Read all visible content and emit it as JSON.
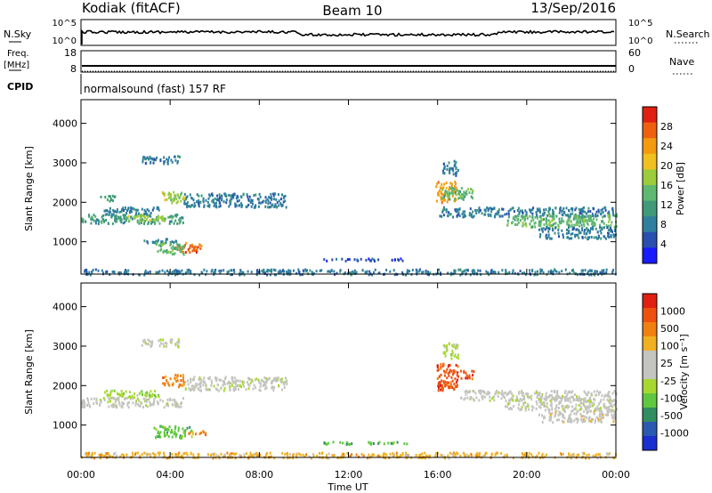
{
  "header": {
    "radar_title": "Kodiak (fitACF)",
    "beam_label": "Beam 10",
    "date_label": "13/Sep/2016"
  },
  "summary_panels": {
    "nsky": {
      "left_label": "N.Sky",
      "right_label": "N.Search",
      "left_ticks": [
        "10^5",
        "10^0"
      ],
      "right_ticks": [
        "10^5",
        "10^0"
      ]
    },
    "freq": {
      "left_label_top": "Freq.",
      "left_label_unit": "[MHz]",
      "right_label": "Nave",
      "left_ticks": [
        "18",
        "8"
      ],
      "right_ticks": [
        "60",
        "0"
      ]
    },
    "cpid": {
      "label": "CPID",
      "program_text": "normalsound (fast) 157 RF"
    }
  },
  "colors": {
    "power_scale": [
      "#1a1aff",
      "#2a4fb0",
      "#2f7f9e",
      "#3f9a7a",
      "#5fb870",
      "#9ccc3c",
      "#f0c020",
      "#f39a10",
      "#ee6010",
      "#e02010"
    ],
    "velocity_scale": [
      "#1a2fd0",
      "#2a5ab0",
      "#2f8f60",
      "#60c840",
      "#a8d830",
      "#c4c4c0",
      "#c4c4c0",
      "#f0b020",
      "#f08010",
      "#ee5010",
      "#e02010"
    ]
  },
  "chart_data": [
    {
      "type": "heatmap",
      "name": "power-panel",
      "xlabel": "",
      "ylabel": "Slant Range [km]",
      "x_unit": "hours UT",
      "xlim": [
        0,
        24
      ],
      "ylim": [
        180,
        4600
      ],
      "yticks": [
        "1000",
        "2000",
        "3000",
        "4000"
      ],
      "colorbar": {
        "label": "Power [dB]",
        "ticks": [
          "4",
          "8",
          "12",
          "16",
          "20",
          "24",
          "28"
        ],
        "range": [
          0,
          32
        ]
      },
      "regions": [
        {
          "t0": 0.0,
          "t1": 4.6,
          "r0": 1480,
          "r1": 1720,
          "level": 11
        },
        {
          "t0": 2.0,
          "t1": 3.8,
          "r0": 1550,
          "r1": 1700,
          "level": 16
        },
        {
          "t0": 1.0,
          "t1": 3.5,
          "r0": 1720,
          "r1": 1900,
          "level": 7
        },
        {
          "t0": 4.6,
          "t1": 9.2,
          "r0": 1900,
          "r1": 2250,
          "level": 8
        },
        {
          "t0": 3.6,
          "t1": 4.6,
          "r0": 2000,
          "r1": 2300,
          "level": 18
        },
        {
          "t0": 2.8,
          "t1": 4.6,
          "r0": 1000,
          "r1": 1100,
          "level": 7
        },
        {
          "t0": 4.2,
          "t1": 5.4,
          "r0": 760,
          "r1": 1000,
          "level": 26
        },
        {
          "t0": 3.3,
          "t1": 4.6,
          "r0": 700,
          "r1": 1000,
          "level": 14
        },
        {
          "t0": 2.7,
          "t1": 4.4,
          "r0": 3000,
          "r1": 3200,
          "level": 9
        },
        {
          "t0": 0.8,
          "t1": 1.5,
          "r0": 2050,
          "r1": 2200,
          "level": 12
        },
        {
          "t0": 10.8,
          "t1": 14.6,
          "r0": 540,
          "r1": 600,
          "level": 6
        },
        {
          "t0": 15.9,
          "t1": 16.8,
          "r0": 2000,
          "r1": 2550,
          "level": 24
        },
        {
          "t0": 16.1,
          "t1": 17.6,
          "r0": 2100,
          "r1": 2400,
          "level": 15
        },
        {
          "t0": 16.2,
          "t1": 16.9,
          "r0": 2700,
          "r1": 3100,
          "level": 9
        },
        {
          "t0": 16.0,
          "t1": 24.0,
          "r0": 1650,
          "r1": 1900,
          "level": 7
        },
        {
          "t0": 19.0,
          "t1": 24.0,
          "r0": 1400,
          "r1": 1700,
          "level": 14
        },
        {
          "t0": 20.5,
          "t1": 24.0,
          "r0": 1100,
          "r1": 1400,
          "level": 8
        },
        {
          "t0": 0.0,
          "t1": 24.0,
          "r0": 190,
          "r1": 330,
          "level": 7
        }
      ]
    },
    {
      "type": "heatmap",
      "name": "velocity-panel",
      "xlabel": "Time UT",
      "ylabel": "Slant Range [km]",
      "x_unit": "hours UT",
      "xlim": [
        0,
        24
      ],
      "ylim": [
        180,
        4600
      ],
      "xticks": [
        "00:00",
        "04:00",
        "08:00",
        "12:00",
        "16:00",
        "20:00",
        "00:00"
      ],
      "yticks": [
        "1000",
        "2000",
        "3000",
        "4000"
      ],
      "colorbar": {
        "label": "Velocity [m s⁻¹]",
        "ticks": [
          "1000",
          "500",
          "100",
          "25",
          "-25",
          "-100",
          "-500",
          "-1000"
        ]
      },
      "regions": [
        {
          "t0": 0.0,
          "t1": 4.6,
          "r0": 1480,
          "r1": 1720,
          "level": 5
        },
        {
          "t0": 4.6,
          "t1": 9.2,
          "r0": 1900,
          "r1": 2250,
          "level": 5
        },
        {
          "t0": 1.0,
          "t1": 3.5,
          "r0": 1720,
          "r1": 1900,
          "level": 4
        },
        {
          "t0": 3.6,
          "t1": 4.6,
          "r0": 2000,
          "r1": 2300,
          "level": 8
        },
        {
          "t0": 3.2,
          "t1": 5.0,
          "r0": 700,
          "r1": 1000,
          "level": 3
        },
        {
          "t0": 4.8,
          "t1": 5.6,
          "r0": 780,
          "r1": 880,
          "level": 8
        },
        {
          "t0": 2.7,
          "t1": 4.4,
          "r0": 3000,
          "r1": 3200,
          "level": 5
        },
        {
          "t0": 10.8,
          "t1": 14.6,
          "r0": 540,
          "r1": 600,
          "level": 3
        },
        {
          "t0": 15.9,
          "t1": 16.9,
          "r0": 1900,
          "r1": 2600,
          "level": 9
        },
        {
          "t0": 17.0,
          "t1": 17.6,
          "r0": 2200,
          "r1": 2400,
          "level": 9
        },
        {
          "t0": 16.2,
          "t1": 16.9,
          "r0": 2700,
          "r1": 3100,
          "level": 4
        },
        {
          "t0": 17.0,
          "t1": 24.0,
          "r0": 1650,
          "r1": 1900,
          "level": 5
        },
        {
          "t0": 19.0,
          "t1": 24.0,
          "r0": 1400,
          "r1": 1700,
          "level": 5
        },
        {
          "t0": 20.5,
          "t1": 24.0,
          "r0": 1100,
          "r1": 1400,
          "level": 6
        },
        {
          "t0": 0.0,
          "t1": 24.0,
          "r0": 190,
          "r1": 330,
          "level": 7
        }
      ]
    }
  ]
}
